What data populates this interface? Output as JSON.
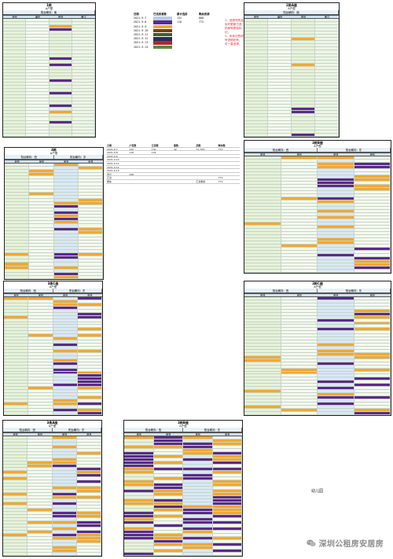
{
  "colors": {
    "purple": "#5b2a8c",
    "orange": "#f2a830",
    "green": "#e6f2d8",
    "blue": "#d8e8f6",
    "grid": "#c6d4c6"
  },
  "summary": {
    "headers": [
      "日期",
      "已选房套数",
      "累计选房",
      "剩余房源"
    ],
    "rows": [
      {
        "date": "2021-9-7",
        "count": "132",
        "total": "888"
      },
      {
        "date": "2021-9-8",
        "count": "116",
        "total": "772"
      },
      {
        "date": "2021-9-9",
        "count": "",
        "total": ""
      },
      {
        "date": "2021-9-10",
        "count": "",
        "total": ""
      },
      {
        "date": "2021-9-11",
        "count": "",
        "total": ""
      },
      {
        "date": "2021-9-12",
        "count": "",
        "total": ""
      },
      {
        "date": "2021-9-13",
        "count": "",
        "total": ""
      },
      {
        "date": "2021-9-14",
        "count": "",
        "total": ""
      }
    ],
    "swatches": [
      "#b9cde8",
      "#5b2a8c",
      "#f2a830",
      "#7a3d1a",
      "#3f5e2a",
      "#2d2d5a",
      "#a8283a",
      "#5c8a3a"
    ]
  },
  "notes": {
    "line1": "1、选择完的会实时更新已选的房号颜色标记。",
    "line2": "2、未标记的房号说明还有，可一直选择。"
  },
  "stats": {
    "headers": [
      "日期",
      "户型数",
      "已选数",
      "套数",
      "选数",
      "剩余数"
    ],
    "rows": [
      [
        "2021-9-7",
        "132",
        "132",
        "42",
        "71.79%",
        "772"
      ],
      [
        "2021-9-8",
        "116",
        "116",
        "",
        "",
        ""
      ],
      [
        "2021-9-9",
        "",
        "",
        "",
        "",
        ""
      ],
      [
        "2021-9-10",
        "",
        "",
        "",
        "",
        ""
      ],
      [
        "2021-9-11",
        "",
        "",
        "",
        "",
        ""
      ],
      [
        "2021-9-12",
        "",
        "",
        "",
        "",
        ""
      ],
      [
        "2021-9-13",
        "",
        "",
        "",
        "",
        ""
      ],
      [
        "合计",
        "248",
        "",
        "",
        "",
        ""
      ],
      [
        "汇总",
        "",
        "",
        "",
        "",
        "772"
      ],
      [
        "剩余",
        "",
        "",
        "",
        "汇总剩余",
        "772"
      ]
    ]
  },
  "blocks": [
    {
      "id": "b1",
      "title": "1栋",
      "subtitle": "A户型",
      "groups": [
        "阳台朝向：南"
      ],
      "cols": [
        "房号",
        "编号",
        "房号",
        "备注"
      ]
    },
    {
      "id": "b2",
      "title": "2栋A座",
      "subtitle": "A户型",
      "groups": [
        "阳台朝向：南"
      ],
      "cols": [
        "房号",
        "编号",
        "房号",
        "备注"
      ]
    },
    {
      "id": "b3",
      "title": "4栋",
      "subtitle": "A户型",
      "groups": [
        "阳台朝向：西",
        "阳台朝向：东"
      ],
      "cols": [
        "房号",
        "房号",
        "房号",
        "房号"
      ]
    },
    {
      "id": "b4",
      "title": "3栋B座",
      "subtitle": "A户型",
      "groups": [
        "阳台朝向：西",
        "阳台朝向：东"
      ],
      "cols": [
        "房号",
        "房号",
        "房号",
        "房号"
      ]
    },
    {
      "id": "b5",
      "title": "3栋C座",
      "subtitle": "A户型",
      "groups": [
        "阳台朝向：西",
        "阳台朝向：东"
      ],
      "cols": [
        "房号",
        "房号",
        "房号",
        "房号"
      ]
    },
    {
      "id": "b6",
      "title": "3栋C座",
      "subtitle": "A户型",
      "groups": [
        "阳台朝向：西",
        "阳台朝向：东"
      ],
      "cols": [
        "房号",
        "房号",
        "房号",
        "房号"
      ]
    },
    {
      "id": "b7",
      "title": "3栋A座",
      "subtitle": "A户型",
      "groups": [
        "阳台朝向：西",
        "阳台朝向：东"
      ],
      "cols": [
        "房号",
        "房号",
        "房号",
        "房号"
      ]
    },
    {
      "id": "b8",
      "title": "3栋B座",
      "subtitle": "A户型",
      "groups": [
        "阳台朝向：西",
        "阳台朝向：东"
      ],
      "cols": [
        "房号",
        "房号",
        "房号",
        "房号"
      ]
    }
  ],
  "kindergarten": "幼儿园",
  "watermark": "深圳公租房安居房"
}
